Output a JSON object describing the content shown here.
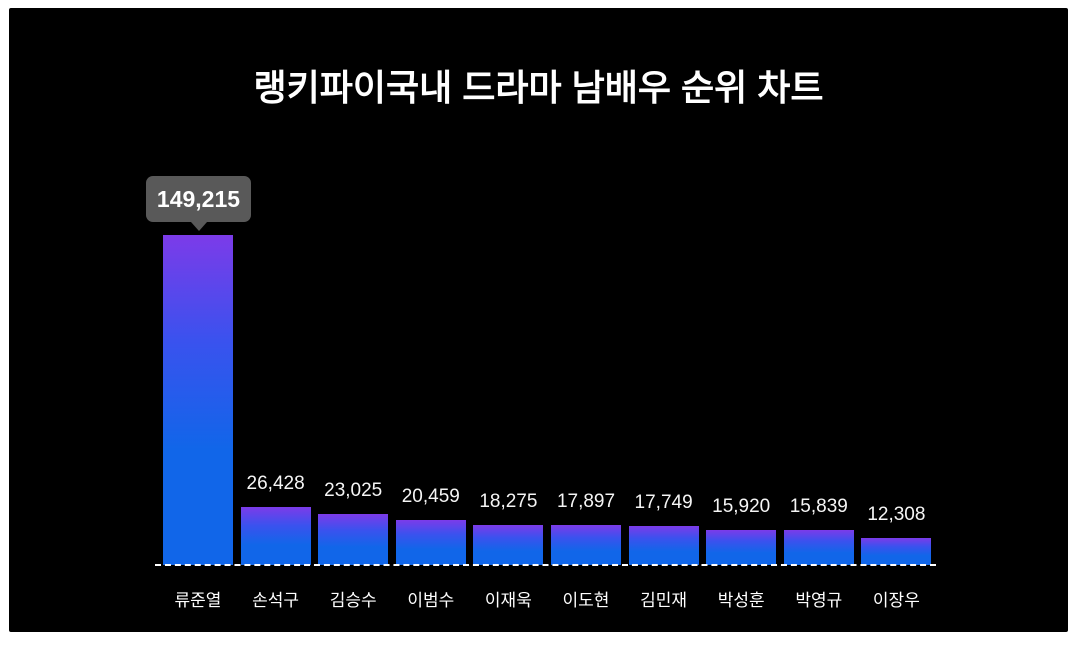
{
  "title": "랭키파이국내 드라마 남배우 순위 차트",
  "colors": {
    "page_background": "#ffffff",
    "canvas_background": "#000000",
    "bar_gradient_top": "#7c3be9",
    "bar_gradient_mid": "#3a52ee",
    "bar_gradient_bottom": "#1166e9",
    "tooltip_background": "#595959",
    "text_color": "#ffffff",
    "baseline_color": "#ffffff"
  },
  "tooltip": {
    "value": "149,215",
    "attached_to": "류준열"
  },
  "chart_data": {
    "type": "bar",
    "title": "랭키파이국내 드라마 남배우 순위 차트",
    "categories": [
      "류준열",
      "손석구",
      "김승수",
      "이범수",
      "이재욱",
      "이도현",
      "김민재",
      "박성훈",
      "박영규",
      "이장우"
    ],
    "values": [
      149215,
      26428,
      23025,
      20459,
      18275,
      17897,
      17749,
      15920,
      15839,
      12308
    ],
    "value_labels": [
      "149,215",
      "26,428",
      "23,025",
      "20,459",
      "18,275",
      "17,897",
      "17,749",
      "15,920",
      "15,839",
      "12,308"
    ],
    "xlabel": "",
    "ylabel": "",
    "ylim": [
      0,
      149215
    ],
    "grid": false,
    "legend": false,
    "baseline": "white dashed",
    "orientation": "vertical"
  }
}
